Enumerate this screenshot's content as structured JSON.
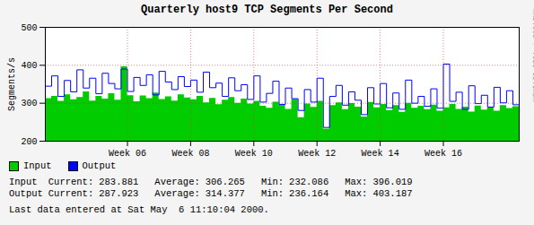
{
  "chart_data": {
    "type": "line",
    "title": "Quarterly host9 TCP Segments Per Second",
    "y_label": "Segments/s",
    "x": [
      3.4,
      3.6,
      3.8,
      4.0,
      4.2,
      4.4,
      4.6,
      4.8,
      5.0,
      5.2,
      5.4,
      5.6,
      5.8,
      6.0,
      6.2,
      6.4,
      6.6,
      6.8,
      7.0,
      7.2,
      7.4,
      7.6,
      7.8,
      8.0,
      8.2,
      8.4,
      8.6,
      8.8,
      9.0,
      9.2,
      9.4,
      9.6,
      9.8,
      10.0,
      10.2,
      10.4,
      10.6,
      10.8,
      11.0,
      11.2,
      11.4,
      11.6,
      11.8,
      12.0,
      12.2,
      12.4,
      12.6,
      12.8,
      13.0,
      13.2,
      13.4,
      13.6,
      13.8,
      14.0,
      14.2,
      14.4,
      14.6,
      14.8,
      15.0,
      15.2,
      15.4,
      15.6,
      15.8,
      16.0,
      16.2,
      16.4,
      16.6,
      16.8,
      17.0,
      17.2,
      17.4,
      17.6,
      17.8,
      18.0,
      18.2,
      18.4
    ],
    "series": [
      {
        "name": "Input",
        "color": "#00cc00",
        "type": "area",
        "values": [
          312,
          318,
          305,
          322,
          309,
          315,
          330,
          306,
          318,
          311,
          325,
          308,
          396,
          320,
          304,
          319,
          312,
          327,
          310,
          317,
          306,
          322,
          314,
          309,
          318,
          301,
          313,
          296,
          308,
          315,
          300,
          311,
          298,
          305,
          292,
          287,
          303,
          295,
          284,
          310,
          262,
          298,
          289,
          305,
          232.086,
          294,
          301,
          283,
          299,
          290,
          264,
          302,
          288,
          297,
          281,
          294,
          276,
          300,
          287,
          292,
          283,
          295,
          279,
          288,
          297,
          284,
          290,
          277,
          293,
          282,
          288,
          279,
          294,
          286,
          291,
          283.881
        ]
      },
      {
        "name": "Output",
        "color": "#0000ff",
        "type": "line",
        "values": [
          345,
          372,
          318,
          360,
          330,
          388,
          340,
          366,
          325,
          379,
          352,
          338,
          390,
          331,
          368,
          347,
          375,
          322,
          384,
          356,
          336,
          370,
          344,
          361,
          329,
          382,
          341,
          353,
          318,
          367,
          333,
          349,
          310,
          372,
          303,
          326,
          358,
          297,
          340,
          312,
          281,
          336,
          303,
          366,
          236.164,
          318,
          347,
          295,
          330,
          308,
          270,
          341,
          298,
          352,
          288,
          327,
          284,
          361,
          300,
          318,
          292,
          338,
          287,
          403.187,
          305,
          329,
          284,
          346,
          299,
          321,
          290,
          342,
          301,
          333,
          296,
          287.923
        ]
      }
    ],
    "xlim": [
      3.4,
      18.4
    ],
    "xticks": [
      {
        "value": 6,
        "label": "Week 06"
      },
      {
        "value": 8,
        "label": "Week 08"
      },
      {
        "value": 10,
        "label": "Week 10"
      },
      {
        "value": 12,
        "label": "Week 12"
      },
      {
        "value": 14,
        "label": "Week 14"
      },
      {
        "value": 16,
        "label": "Week 16"
      }
    ],
    "ylim": [
      200,
      500
    ],
    "yticks": [
      200,
      300,
      400,
      500
    ],
    "grid": true,
    "legend": "bottom",
    "stats": {
      "labels": [
        "Current:",
        "Average:",
        "Min:",
        "Max:"
      ],
      "rows": [
        {
          "name": "Input",
          "values": [
            283.881,
            306.265,
            232.086,
            396.019
          ]
        },
        {
          "name": "Output",
          "values": [
            287.923,
            314.377,
            236.164,
            403.187
          ]
        }
      ]
    },
    "footer": "Last data entered at Sat May  6 11:10:04 2000.",
    "credit": "RRDTOOL / TOBI OETIKER"
  }
}
